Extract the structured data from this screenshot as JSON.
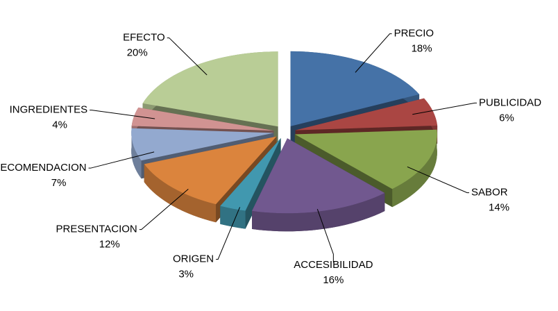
{
  "chart_data": {
    "type": "pie3d",
    "categories": [
      "PRECIO",
      "PUBLICIDAD",
      "SABOR",
      "ACCESIBILIDAD",
      "ORIGEN",
      "PRESENTACION",
      "RECOMENDACION",
      "INGREDIENTES",
      "EFECTO"
    ],
    "values": [
      18,
      6,
      14,
      16,
      3,
      12,
      7,
      4,
      20
    ],
    "value_labels": [
      "18%",
      "6%",
      "14%",
      "16%",
      "3%",
      "12%",
      "7%",
      "4%",
      "20%"
    ],
    "colors": [
      "#4572a7",
      "#aa4643",
      "#89a54e",
      "#71588f",
      "#4198af",
      "#db843d",
      "#93a9cf",
      "#d19392",
      "#b9cd96"
    ],
    "exploded": true
  }
}
